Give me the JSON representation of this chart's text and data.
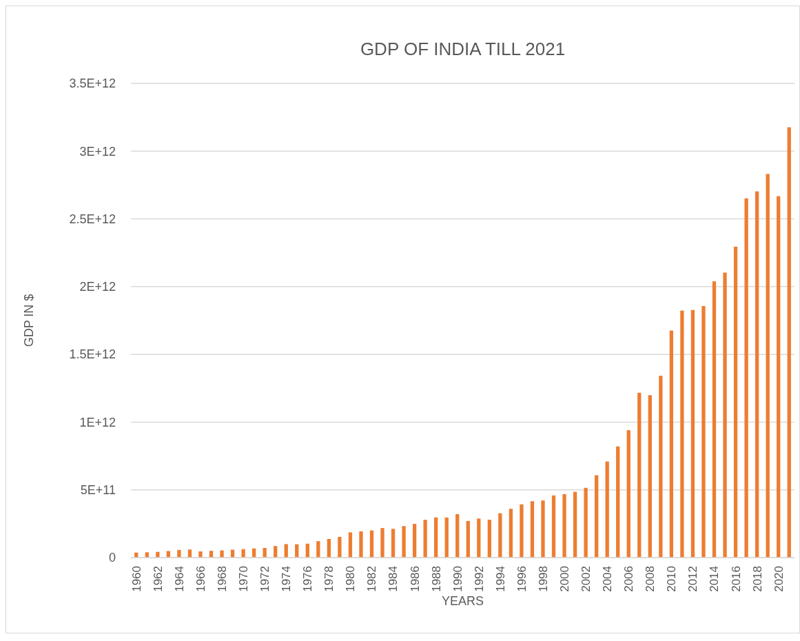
{
  "chart_data": {
    "type": "bar",
    "title": "GDP OF INDIA TILL 2021",
    "xlabel": "YEARS",
    "ylabel": "GDP IN $",
    "categories": [
      "1960",
      null,
      "1962",
      null,
      "1964",
      null,
      "1966",
      null,
      "1968",
      null,
      "1970",
      null,
      "1972",
      null,
      "1974",
      null,
      "1976",
      null,
      "1978",
      null,
      "1980",
      null,
      "1982",
      null,
      "1984",
      null,
      "1986",
      null,
      "1988",
      null,
      "1990",
      null,
      "1992",
      null,
      "1994",
      null,
      "1996",
      null,
      "1998",
      null,
      "2000",
      null,
      "2002",
      null,
      "2004",
      null,
      "2006",
      null,
      "2008",
      null,
      "2010",
      null,
      "2012",
      null,
      "2014",
      null,
      "2016",
      null,
      "2018",
      null,
      "2020",
      null
    ],
    "values": [
      37000000000,
      39200000000,
      42200000000,
      48400000000,
      56500000000,
      59600000000,
      45900000000,
      50100000000,
      53100000000,
      58400000000,
      62400000000,
      67400000000,
      71500000000,
      85500000000,
      99500000000,
      98500000000,
      102700000000,
      121500000000,
      137300000000,
      153000000000,
      186300000000,
      193500000000,
      200700000000,
      218300000000,
      212200000000,
      232500000000,
      249000000000,
      279000000000,
      296600000000,
      296000000000,
      321000000000,
      270100000000,
      288200000000,
      279300000000,
      327300000000,
      360300000000,
      392900000000,
      415900000000,
      421400000000,
      458800000000,
      468400000000,
      485400000000,
      514900000000,
      607700000000,
      709100000000,
      820400000000,
      940300000000,
      1216700000000,
      1198900000000,
      1341900000000,
      1675600000000,
      1823100000000,
      1827600000000,
      1856700000000,
      2039100000000,
      2103600000000,
      2294800000000,
      2651500000000,
      2702900000000,
      2831600000000,
      2667700000000,
      3176300000000
    ],
    "color": "#ed7d31",
    "ylim": [
      0,
      3500000000000
    ],
    "yticks": [
      0,
      {
        "value": 500000000000,
        "label": "5E+11"
      },
      {
        "value": 1000000000000,
        "label": "1E+12"
      },
      {
        "value": 1500000000000,
        "label": "1.5E+12"
      },
      {
        "value": 2000000000000,
        "label": "2E+12"
      },
      {
        "value": 2500000000000,
        "label": "2.5E+12"
      },
      {
        "value": 3000000000000,
        "label": "3E+12"
      },
      {
        "value": 3500000000000,
        "label": "3.5E+12"
      }
    ],
    "grid": "y"
  }
}
